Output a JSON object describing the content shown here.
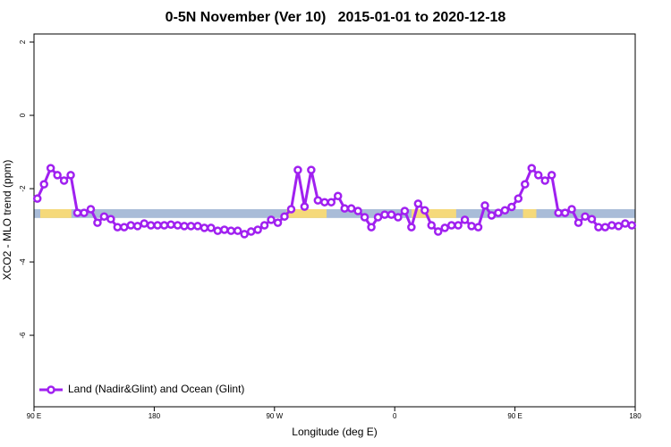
{
  "chart_data": {
    "type": "line",
    "title": "0-5N November (Ver 10)   2015-01-01 to 2020-12-18",
    "xlabel": "Longitude (deg E)",
    "ylabel": "XCO2 - MLO trend (ppm)",
    "x": [
      92.5,
      97.5,
      102.5,
      107.5,
      112.5,
      117.5,
      122.5,
      127.5,
      132.5,
      137.5,
      142.5,
      147.5,
      152.5,
      157.5,
      162.5,
      167.5,
      172.5,
      177.5,
      182.5,
      187.5,
      192.5,
      197.5,
      202.5,
      207.5,
      212.5,
      217.5,
      222.5,
      227.5,
      232.5,
      237.5,
      242.5,
      247.5,
      252.5,
      257.5,
      262.5,
      267.5,
      272.5,
      277.5,
      282.5,
      287.5,
      292.5,
      297.5,
      302.5,
      307.5,
      312.5,
      317.5,
      322.5,
      327.5,
      332.5,
      337.5,
      342.5,
      347.5,
      352.5,
      357.5,
      362.5,
      367.5,
      372.5,
      377.5,
      382.5,
      387.5,
      392.5,
      397.5,
      402.5,
      407.5,
      412.5,
      417.5,
      422.5,
      427.5,
      432.5,
      437.5,
      442.5,
      447.5,
      452.5,
      457.5,
      462.5,
      467.5,
      472.5,
      477.5,
      482.5,
      487.5,
      492.5,
      497.5,
      502.5,
      507.5,
      512.5,
      517.5,
      522.5,
      527.5,
      532.5,
      537.5
    ],
    "series": [
      {
        "name": "Land (Nadir&Glint) and Ocean (Glint)",
        "color": "#a020f0",
        "values": [
          -2.27,
          -1.88,
          -1.44,
          -1.63,
          -1.78,
          -1.63,
          -2.66,
          -2.66,
          -2.56,
          -2.93,
          -2.76,
          -2.83,
          -3.05,
          -3.05,
          -3.0,
          -3.02,
          -2.95,
          -3.0,
          -3.0,
          -3.0,
          -2.98,
          -3.0,
          -3.02,
          -3.02,
          -3.02,
          -3.07,
          -3.07,
          -3.15,
          -3.12,
          -3.15,
          -3.15,
          -3.24,
          -3.17,
          -3.12,
          -3.0,
          -2.85,
          -2.93,
          -2.76,
          -2.56,
          -1.49,
          -2.49,
          -1.49,
          -2.32,
          -2.37,
          -2.37,
          -2.2,
          -2.54,
          -2.54,
          -2.61,
          -2.78,
          -3.05,
          -2.78,
          -2.71,
          -2.71,
          -2.78,
          -2.61,
          -3.05,
          -2.41,
          -2.59,
          -3.0,
          -3.17,
          -3.07,
          -3.0,
          -3.0,
          -2.85,
          -3.02,
          -3.05,
          -2.46,
          -2.73,
          -2.66,
          -2.59,
          -2.5,
          -2.27,
          -1.88,
          -1.44,
          -1.63,
          -1.78,
          -1.63,
          -2.66,
          -2.66,
          -2.56,
          -2.93,
          -2.76,
          -2.83,
          -3.05,
          -3.05,
          -3.0,
          -3.02,
          -2.95,
          -3.0
        ]
      }
    ],
    "xlim": [
      90,
      540
    ],
    "xticks": [
      {
        "value": 90,
        "label": "90 E"
      },
      180,
      {
        "value": 270,
        "label": "90 W"
      },
      {
        "value": 360,
        "label": "0"
      },
      {
        "value": 450,
        "label": "90 E"
      },
      {
        "value": 540,
        "label": "180"
      }
    ],
    "ylim": [
      -7.95,
      2.22
    ],
    "yticks": [
      2,
      0,
      -2,
      -4,
      -6
    ],
    "band": {
      "ylim": [
        -2.8,
        -2.56
      ],
      "color": "#a9bcd8",
      "highlight_color": "#f5d97a",
      "highlights": [
        [
          94.7,
          118
        ],
        [
          279,
          309
        ],
        [
          372.6,
          406
        ],
        [
          456,
          466
        ]
      ]
    },
    "legend": "bottom-left"
  }
}
